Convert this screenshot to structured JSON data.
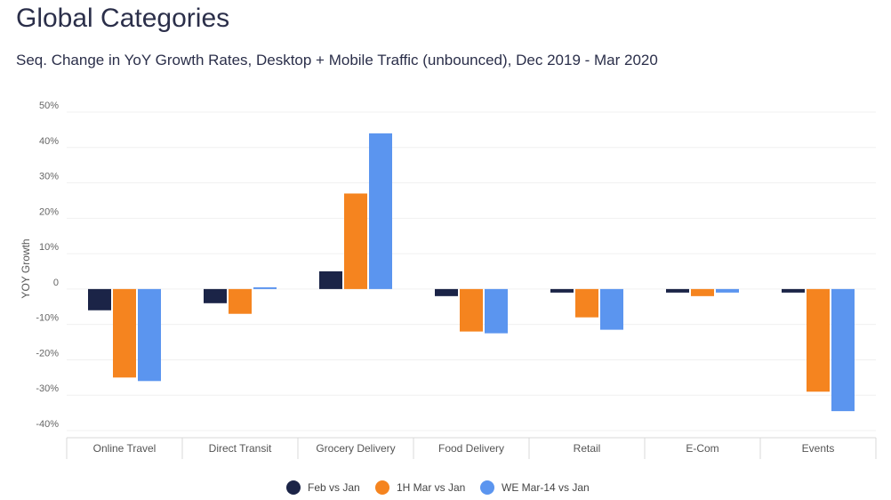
{
  "chart_data": {
    "type": "bar",
    "title": "Global Categories",
    "subtitle": "Seq. Change in YoY Growth Rates, Desktop + Mobile Traffic (unbounced), Dec 2019 - Mar 2020",
    "xlabel": "",
    "ylabel": "YOY Growth",
    "ylim": [
      -40,
      50
    ],
    "yticks": [
      50,
      40,
      30,
      20,
      10,
      0,
      -10,
      -20,
      -30,
      -40
    ],
    "ytick_labels": [
      "50%",
      "40%",
      "30%",
      "20%",
      "10%",
      "0",
      "-10%",
      "-20%",
      "-30%",
      "-40%"
    ],
    "categories": [
      "Online Travel",
      "Direct Transit",
      "Grocery Delivery",
      "Food Delivery",
      "Retail",
      "E-Com",
      "Events"
    ],
    "series": [
      {
        "name": "Feb vs Jan",
        "color": "#1b2447",
        "values": [
          -6,
          -4,
          5,
          -2,
          -1,
          -1,
          -1
        ]
      },
      {
        "name": "1H Mar vs Jan",
        "color": "#f5841f",
        "values": [
          -25,
          -7,
          27,
          -12,
          -8,
          -2,
          -29
        ]
      },
      {
        "name": "WE Mar-14 vs Jan",
        "color": "#5b95ef",
        "values": [
          -26,
          0.5,
          44,
          -12.5,
          -11.5,
          -1,
          -34.5
        ]
      }
    ],
    "grid": true,
    "legend_position": "bottom-center"
  }
}
